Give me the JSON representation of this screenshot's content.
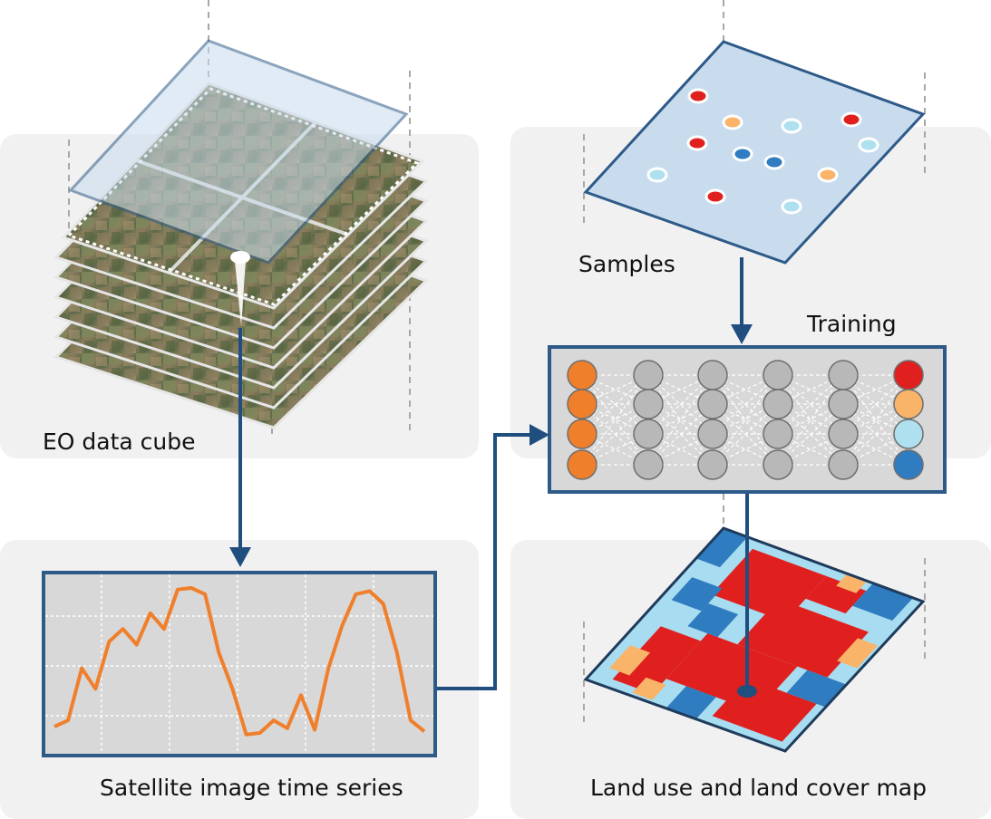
{
  "labels": {
    "cube": "EO data cube",
    "samples": "Samples",
    "training": "Training",
    "timeseries": "Satellite image time series",
    "map": "Land use and land cover map"
  },
  "colors": {
    "frame": "#2e5a88",
    "arrow": "#1f4e7f",
    "panel_bg": "#f1f1f1",
    "ts_line": "#f07f2c",
    "plane_fill": "#c9dcee",
    "node_gray": "#b8b8b8",
    "class_red": "#e0201f",
    "class_light_orange": "#f9b46a",
    "class_light_blue": "#aee0f0",
    "class_blue": "#2f7dc0",
    "input_orange": "#f07f2c",
    "land_light_blue": "#a8dcf0"
  },
  "time_series": {
    "description_values": [
      0.08,
      0.12,
      0.45,
      0.32,
      0.62,
      0.7,
      0.6,
      0.8,
      0.7,
      0.95,
      0.96,
      0.92,
      0.55,
      0.32,
      0.03,
      0.04,
      0.12,
      0.07,
      0.28,
      0.06,
      0.45,
      0.72,
      0.92,
      0.94,
      0.86,
      0.55,
      0.12,
      0.05
    ]
  }
}
